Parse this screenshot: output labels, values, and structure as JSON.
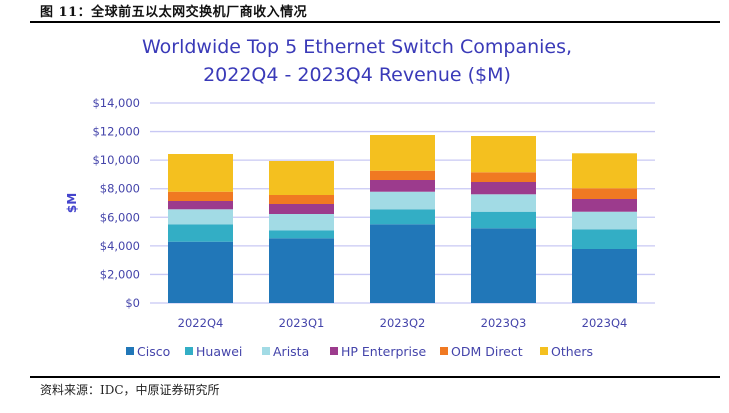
{
  "figure": {
    "caption": "图 11：全球前五以太网交换机厂商收入情况",
    "source": "资料来源：IDC，中原证券研究所"
  },
  "chart_data": {
    "type": "bar",
    "stacked": true,
    "title": "Worldwide Top 5 Ethernet Switch Companies,",
    "subtitle": "2022Q4 - 2023Q4 Revenue ($M)",
    "xlabel": "",
    "ylabel": "$M",
    "ylim": [
      0,
      14000
    ],
    "yticks": [
      0,
      2000,
      4000,
      6000,
      8000,
      10000,
      12000,
      14000
    ],
    "ytick_labels": [
      "$0",
      "$2,000",
      "$4,000",
      "$6,000",
      "$8,000",
      "$10,000",
      "$12,000",
      "$14,000"
    ],
    "grid": true,
    "legend_position": "bottom",
    "categories": [
      "2022Q4",
      "2023Q1",
      "2023Q2",
      "2023Q3",
      "2023Q4"
    ],
    "series": [
      {
        "name": "Cisco",
        "color": "#2177b8",
        "values": [
          4290,
          4530,
          5510,
          5230,
          3780
        ]
      },
      {
        "name": "Huawei",
        "color": "#33aec5",
        "values": [
          1220,
          560,
          1050,
          1160,
          1380
        ]
      },
      {
        "name": "Arista",
        "color": "#a2dbe5",
        "values": [
          1050,
          1140,
          1230,
          1220,
          1230
        ]
      },
      {
        "name": "HP Enterprise",
        "color": "#9c3b8d",
        "values": [
          580,
          700,
          820,
          860,
          890
        ]
      },
      {
        "name": "ODM Direct",
        "color": "#f07922",
        "values": [
          650,
          630,
          650,
          680,
          750
        ]
      },
      {
        "name": "Others",
        "color": "#f4c01f",
        "values": [
          2640,
          2380,
          2500,
          2540,
          2450
        ]
      }
    ]
  }
}
